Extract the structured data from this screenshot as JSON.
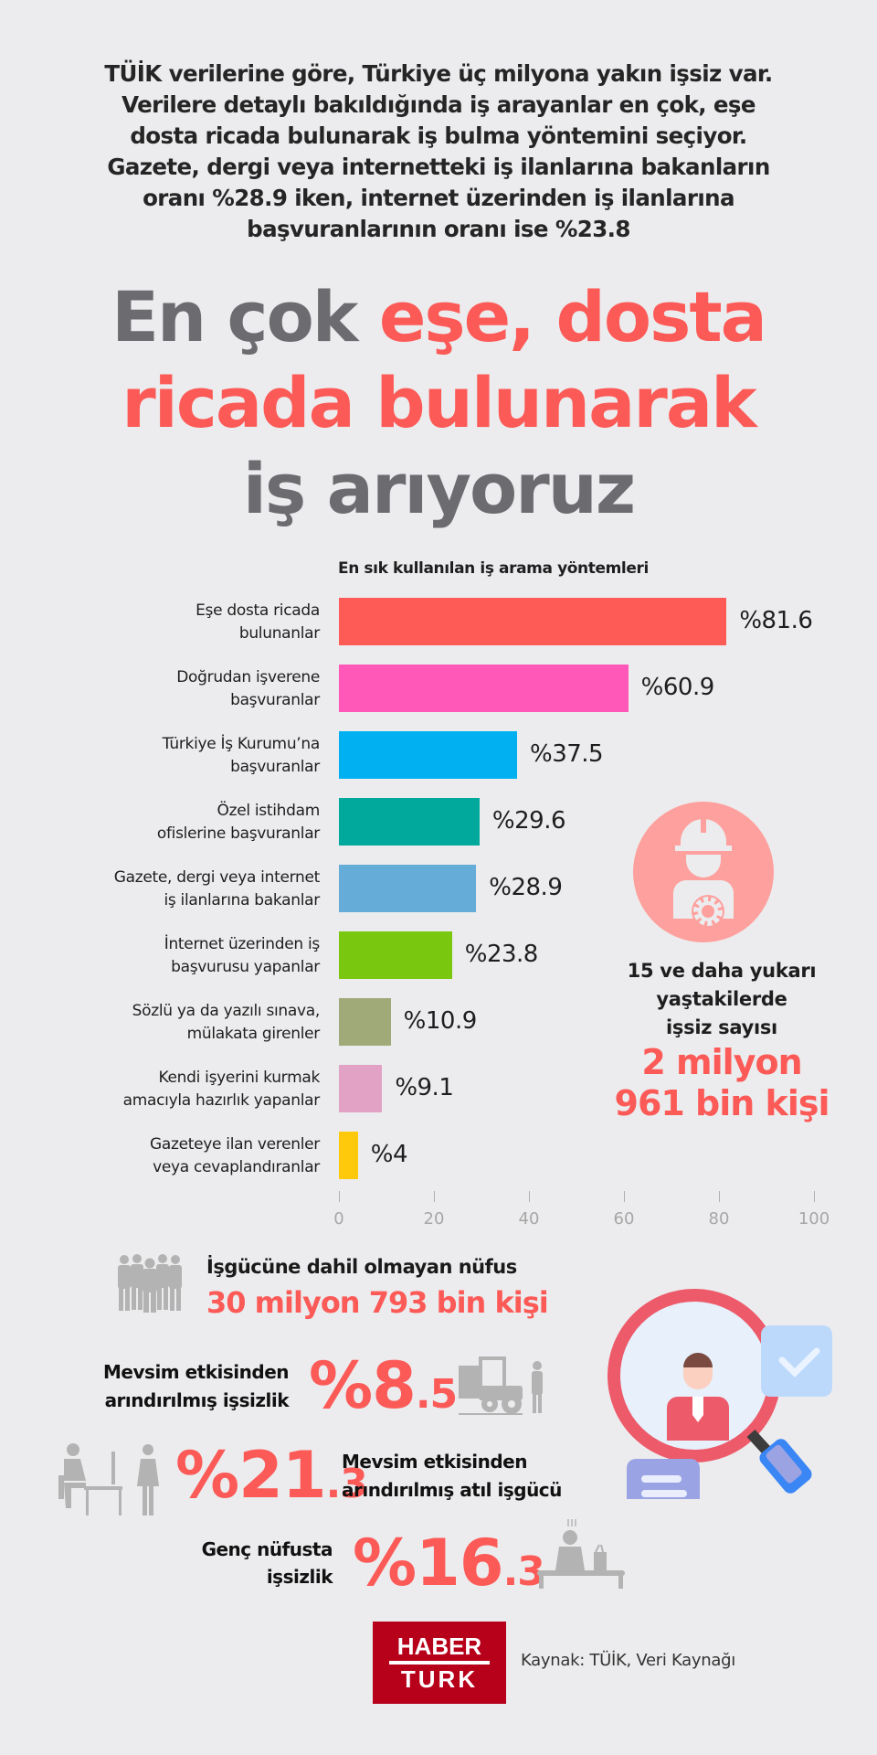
{
  "intro": {
    "lines": [
      "TÜİK verilerine göre, Türkiye üç milyona yakın işsiz var.",
      "Verilere detaylı bakıldığında iş arayanlar en çok, eşe",
      "dosta ricada bulunarak iş bulma yöntemini seçiyor.",
      "Gazete, dergi veya internetteki iş ilanlarına bakanların",
      "oranı %28.9 iken, internet üzerinden iş ilanlarına",
      "başvuranlarının oranı ise %23.8"
    ]
  },
  "headline": {
    "part1": "En çok ",
    "part2": "eşe, dosta",
    "part3": "ricada bulunarak",
    "part4": "iş arıyoruz"
  },
  "colors": {
    "accent": "#fc5a57",
    "headline_grey": "#6c6c70",
    "background": "#ececee",
    "logo_red": "#b7001a"
  },
  "chart_data": {
    "type": "bar",
    "orientation": "horizontal",
    "title": "En sık kullanılan iş arama yöntemleri",
    "categories": [
      "Eşe dosta ricada bulunanlar",
      "Doğrudan işverene başvuranlar",
      "Türkiye İş Kurumu’na başvuranlar",
      "Özel istihdam ofislerine başvuranlar",
      "Gazete, dergi veya internet iş ilanlarına bakanlar",
      "İnternet üzerinden iş başvurusu yapanlar",
      "Sözlü ya da yazılı sınava, mülakata girenler",
      "Kendi işyerini kurmak amacıyla hazırlık yapanlar",
      "Gazeteye ilan verenler veya cevaplandıranlar"
    ],
    "values": [
      81.6,
      60.9,
      37.5,
      29.6,
      28.9,
      23.8,
      10.9,
      9.1,
      4
    ],
    "value_labels": [
      "%81.6",
      "%60.9",
      "%37.5",
      "%29.6",
      "%28.9",
      "%23.8",
      "%10.9",
      "%9.1",
      "%4"
    ],
    "label_lines": [
      [
        "Eşe dosta ricada",
        "bulunanlar"
      ],
      [
        "Doğrudan işverene",
        "başvuranlar"
      ],
      [
        "Türkiye İş Kurumu’na",
        "başvuranlar"
      ],
      [
        "Özel istihdam",
        "ofislerine başvuranlar"
      ],
      [
        "Gazete, dergi veya internet",
        "iş ilanlarına bakanlar"
      ],
      [
        "İnternet üzerinden iş",
        "başvurusu yapanlar"
      ],
      [
        "Sözlü ya da yazılı sınava,",
        "mülakata girenler"
      ],
      [
        "Kendi işyerini kurmak",
        "amacıyla hazırlık yapanlar"
      ],
      [
        "Gazeteye ilan verenler",
        "veya cevaplandıranlar"
      ]
    ],
    "bar_colors": [
      "#fe5b57",
      "#ff58b8",
      "#00b0f0",
      "#00a99b",
      "#66acd9",
      "#7ac70f",
      "#a0a978",
      "#e2a2c6",
      "#ffc90b"
    ],
    "xticks": [
      0,
      20,
      40,
      60,
      80,
      100
    ],
    "xlim": [
      0,
      100
    ],
    "xlabel": "",
    "ylabel": "",
    "grid": false,
    "legend": "none"
  },
  "unemployed": {
    "icon": "worker-with-gear-icon",
    "label_lines": [
      "15 ve daha yukarı",
      "yaştakilerde",
      "işsiz sayısı"
    ],
    "value_lines": [
      "2 milyon",
      "961 bin kişi"
    ]
  },
  "stats": {
    "not_in_labor": {
      "icon": "people-group-icon",
      "label": "İşgücüne dahil olmayan nüfus",
      "value": "30 milyon 793 bin kişi"
    },
    "seasonal_unemployment": {
      "icon": "forklift-worker-icon",
      "label_lines": [
        "Mevsim etkisinden",
        "arındırılmış işsizlik"
      ],
      "value_main": "%8",
      "value_dec": ".5"
    },
    "idle_labor": {
      "icon": "office-worker-icon",
      "label_lines": [
        "Mevsim etkisinden",
        "arındırılmış atıl işgücü"
      ],
      "value_main": "%21",
      "value_dec": ".3"
    },
    "youth_unemployment": {
      "icon": "sad-person-bench-icon",
      "label_lines": [
        "Genç nüfusta",
        "işsizlik"
      ],
      "value_main": "%16",
      "value_dec": ".3"
    }
  },
  "search_illustration": {
    "icon": "magnifier-candidate-icon"
  },
  "footer": {
    "logo_line1": "HABER",
    "logo_line2": "TURK",
    "source": "Kaynak: TÜİK, Veri Kaynağı"
  }
}
